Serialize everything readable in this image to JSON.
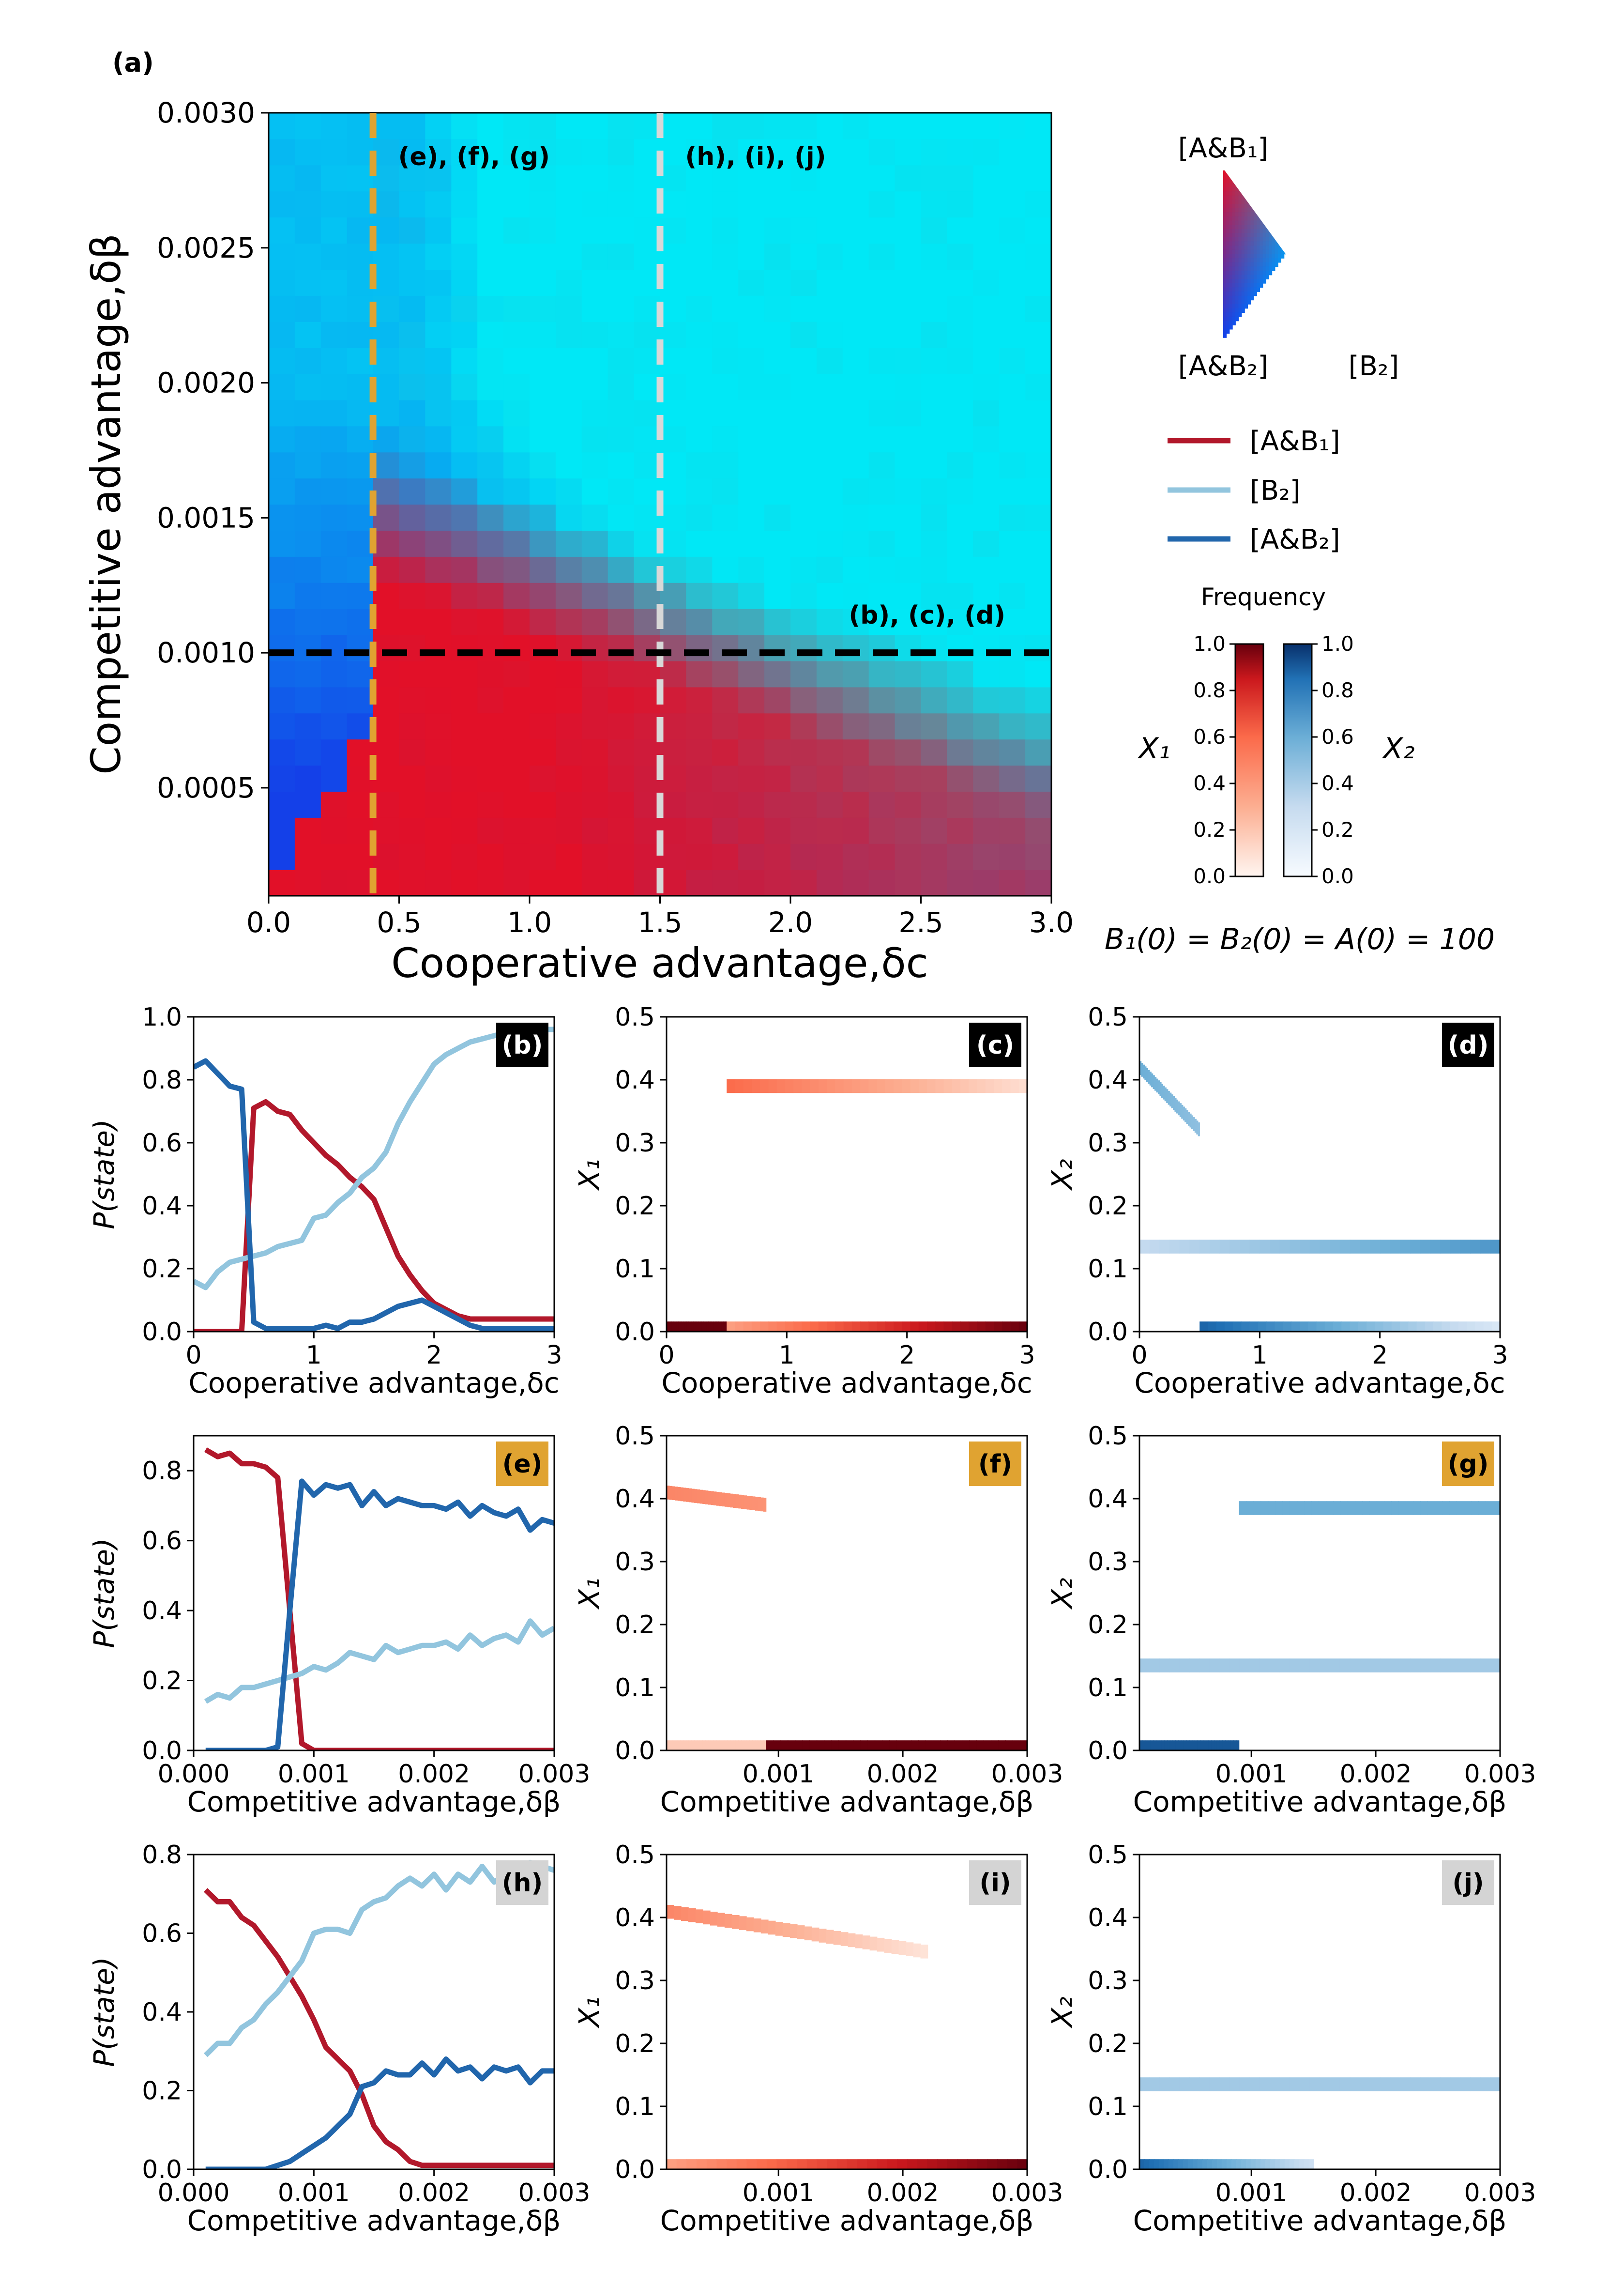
{
  "figure_label": "(a)",
  "annotation_initial": "B₁(0) = B₂(0) = A(0) = 100",
  "legend": {
    "triangle_top": "[A&B₁]",
    "triangle_bottom_left": "[A&B₂]",
    "triangle_bottom_right": "[B₂]",
    "lines": [
      {
        "label": "[A&B₁]",
        "color": "#b2182b"
      },
      {
        "label": "[B₂]",
        "color": "#92c5de"
      },
      {
        "label": "[A&B₂]",
        "color": "#2166ac"
      }
    ],
    "frequency_title": "Frequency",
    "x1_label": "X₁",
    "x2_label": "X₂",
    "ticks": [
      "1.0",
      "0.8",
      "0.6",
      "0.4",
      "0.2",
      "0.0"
    ]
  },
  "chart_data": [
    {
      "id": "a",
      "type": "heatmap",
      "title": "",
      "xlabel": "Cooperative advantage,δc",
      "ylabel": "Competitive advantage,δβ",
      "xlim": [
        0,
        3.0
      ],
      "ylim": [
        0.0001,
        0.003
      ],
      "xticks": [
        "0.0",
        "0.5",
        "1.0",
        "1.5",
        "2.0",
        "2.5",
        "3.0"
      ],
      "yticks": [
        "0.0005",
        "0.0010",
        "0.0015",
        "0.0020",
        "0.0025",
        "0.0030"
      ],
      "grid": {
        "nx": 30,
        "ny": 30,
        "value": "mixture of [A&B₁] (red), [A&B₂] (blue), [B₂] (cyan)"
      },
      "vlines": [
        {
          "x": 0.4,
          "color": "#e0a331",
          "label": "(e), (f), (g)"
        },
        {
          "x": 1.5,
          "color": "#d8d8d8",
          "label": "(h), (i), (j)"
        }
      ],
      "hlines": [
        {
          "y": 0.001,
          "color": "#000000",
          "label": "(b), (c), (d)"
        }
      ]
    },
    {
      "id": "b",
      "type": "line",
      "tag": "(b)",
      "tag_style": "black",
      "xlabel": "Cooperative advantage,δc",
      "ylabel": "P(state)",
      "xlim": [
        0,
        3
      ],
      "ylim": [
        0,
        1.0
      ],
      "xticks": [
        "0",
        "1",
        "2",
        "3"
      ],
      "yticks": [
        "0.0",
        "0.2",
        "0.4",
        "0.6",
        "0.8",
        "1.0"
      ],
      "x": [
        0,
        0.1,
        0.2,
        0.3,
        0.4,
        0.5,
        0.6,
        0.7,
        0.8,
        0.9,
        1.0,
        1.1,
        1.2,
        1.3,
        1.4,
        1.5,
        1.6,
        1.7,
        1.8,
        1.9,
        2.0,
        2.1,
        2.2,
        2.3,
        2.4,
        2.5,
        2.6,
        2.7,
        2.8,
        2.9,
        3.0
      ],
      "series": [
        {
          "name": "[A&B₁]",
          "color": "#b2182b",
          "values": [
            0,
            0,
            0,
            0,
            0,
            0.71,
            0.73,
            0.7,
            0.69,
            0.64,
            0.6,
            0.56,
            0.53,
            0.49,
            0.46,
            0.42,
            0.33,
            0.24,
            0.18,
            0.13,
            0.09,
            0.07,
            0.05,
            0.04,
            0.04,
            0.04,
            0.04,
            0.04,
            0.04,
            0.04,
            0.04
          ]
        },
        {
          "name": "[B₂]",
          "color": "#92c5de",
          "values": [
            0.16,
            0.14,
            0.19,
            0.22,
            0.23,
            0.24,
            0.25,
            0.27,
            0.28,
            0.29,
            0.36,
            0.37,
            0.41,
            0.44,
            0.49,
            0.52,
            0.57,
            0.66,
            0.73,
            0.79,
            0.85,
            0.88,
            0.9,
            0.92,
            0.93,
            0.94,
            0.95,
            0.96,
            0.96,
            0.96,
            0.96
          ]
        },
        {
          "name": "[A&B₂]",
          "color": "#2166ac",
          "values": [
            0.84,
            0.86,
            0.82,
            0.78,
            0.77,
            0.03,
            0.01,
            0.01,
            0.01,
            0.01,
            0.01,
            0.02,
            0.01,
            0.03,
            0.03,
            0.04,
            0.06,
            0.08,
            0.09,
            0.1,
            0.08,
            0.06,
            0.04,
            0.02,
            0.01,
            0.01,
            0.01,
            0.01,
            0.01,
            0.01,
            0.01
          ]
        }
      ]
    },
    {
      "id": "c",
      "type": "heatmap",
      "tag": "(c)",
      "tag_style": "black",
      "xlabel": "Cooperative advantage,δc",
      "ylabel": "X₁",
      "xlim": [
        0,
        3
      ],
      "ylim": [
        0,
        0.5
      ],
      "xticks": [
        "0",
        "1",
        "2",
        "3"
      ],
      "yticks": [
        "0.0",
        "0.1",
        "0.2",
        "0.3",
        "0.4",
        "0.5"
      ],
      "bands": [
        {
          "y": 0.005,
          "x0": 0.0,
          "x1": 0.5,
          "intensity": 1.0
        },
        {
          "y": 0.005,
          "x0": 0.5,
          "x1": 3.0,
          "intensity_from": 0.3,
          "intensity_to": 1.0
        },
        {
          "y": 0.39,
          "x0": 0.5,
          "x1": 3.0,
          "intensity_from": 0.5,
          "intensity_to": 0.08
        }
      ]
    },
    {
      "id": "d",
      "type": "heatmap",
      "tag": "(d)",
      "tag_style": "black",
      "xlabel": "Cooperative advantage,δc",
      "ylabel": "X₂",
      "xlim": [
        0,
        3
      ],
      "ylim": [
        0,
        0.5
      ],
      "xticks": [
        "0",
        "1",
        "2",
        "3"
      ],
      "yticks": [
        "0.0",
        "0.1",
        "0.2",
        "0.3",
        "0.4",
        "0.5"
      ],
      "bands": [
        {
          "y": 0.005,
          "x0": 0.5,
          "x1": 3.0,
          "intensity_from": 0.8,
          "intensity_to": 0.15
        },
        {
          "y": 0.135,
          "x0": 0.0,
          "x1": 3.0,
          "intensity_from": 0.25,
          "intensity_to": 0.6
        },
        {
          "y": 0.42,
          "x0": 0.0,
          "x1": 0.5,
          "intensity_from": 0.5,
          "intensity_to": 0.4,
          "slope": -0.1
        }
      ]
    },
    {
      "id": "e",
      "type": "line",
      "tag": "(e)",
      "tag_style": "gold",
      "xlabel": "Competitive advantage,δβ",
      "ylabel": "P(state)",
      "xlim": [
        0,
        0.003
      ],
      "ylim": [
        0,
        0.9
      ],
      "xticks": [
        "0.000",
        "0.001",
        "0.002",
        "0.003"
      ],
      "yticks": [
        "0.0",
        "0.2",
        "0.4",
        "0.6",
        "0.8"
      ],
      "x": [
        0.0001,
        0.0002,
        0.0003,
        0.0004,
        0.0005,
        0.0006,
        0.0007,
        0.0008,
        0.0009,
        0.001,
        0.0011,
        0.0012,
        0.0013,
        0.0014,
        0.0015,
        0.0016,
        0.0017,
        0.0018,
        0.0019,
        0.002,
        0.0021,
        0.0022,
        0.0023,
        0.0024,
        0.0025,
        0.0026,
        0.0027,
        0.0028,
        0.0029,
        0.003
      ],
      "series": [
        {
          "name": "[A&B₁]",
          "color": "#b2182b",
          "values": [
            0.86,
            0.84,
            0.85,
            0.82,
            0.82,
            0.81,
            0.78,
            0.4,
            0.02,
            0,
            0,
            0,
            0,
            0,
            0,
            0,
            0,
            0,
            0,
            0,
            0,
            0,
            0,
            0,
            0,
            0,
            0,
            0,
            0,
            0
          ]
        },
        {
          "name": "[B₂]",
          "color": "#92c5de",
          "values": [
            0.14,
            0.16,
            0.15,
            0.18,
            0.18,
            0.19,
            0.2,
            0.21,
            0.22,
            0.24,
            0.23,
            0.25,
            0.28,
            0.27,
            0.26,
            0.3,
            0.28,
            0.29,
            0.3,
            0.3,
            0.31,
            0.29,
            0.33,
            0.3,
            0.32,
            0.33,
            0.31,
            0.37,
            0.33,
            0.35
          ]
        },
        {
          "name": "[A&B₂]",
          "color": "#2166ac",
          "values": [
            0,
            0,
            0,
            0,
            0,
            0,
            0.01,
            0.4,
            0.77,
            0.73,
            0.76,
            0.75,
            0.76,
            0.7,
            0.74,
            0.7,
            0.72,
            0.71,
            0.7,
            0.7,
            0.69,
            0.71,
            0.67,
            0.7,
            0.68,
            0.67,
            0.69,
            0.63,
            0.66,
            0.65
          ]
        }
      ]
    },
    {
      "id": "f",
      "type": "heatmap",
      "tag": "(f)",
      "tag_style": "gold",
      "xlabel": "Competitive advantage,δβ",
      "ylabel": "X₁",
      "xlim": [
        0.0001,
        0.003
      ],
      "ylim": [
        0,
        0.5
      ],
      "xticks": [
        "0.001",
        "0.002",
        "0.003"
      ],
      "yticks": [
        "0.0",
        "0.1",
        "0.2",
        "0.3",
        "0.4",
        "0.5"
      ],
      "bands": [
        {
          "y": 0.005,
          "x0": 0.0001,
          "x1": 0.0009,
          "intensity": 0.15
        },
        {
          "y": 0.005,
          "x0": 0.0009,
          "x1": 0.003,
          "intensity": 1.0
        },
        {
          "y": 0.41,
          "x0": 0.0001,
          "x1": 0.0009,
          "intensity_from": 0.4,
          "intensity_to": 0.35,
          "slope": -0.02
        }
      ]
    },
    {
      "id": "g",
      "type": "heatmap",
      "tag": "(g)",
      "tag_style": "gold",
      "xlabel": "Competitive advantage,δβ",
      "ylabel": "X₂",
      "xlim": [
        0.0001,
        0.003
      ],
      "ylim": [
        0,
        0.5
      ],
      "xticks": [
        "0.001",
        "0.002",
        "0.003"
      ],
      "yticks": [
        "0.0",
        "0.1",
        "0.2",
        "0.3",
        "0.4",
        "0.5"
      ],
      "bands": [
        {
          "y": 0.005,
          "x0": 0.0001,
          "x1": 0.0009,
          "intensity": 0.85
        },
        {
          "y": 0.135,
          "x0": 0.0001,
          "x1": 0.003,
          "intensity": 0.35
        },
        {
          "y": 0.385,
          "x0": 0.0009,
          "x1": 0.003,
          "intensity": 0.5
        }
      ]
    },
    {
      "id": "h",
      "type": "line",
      "tag": "(h)",
      "tag_style": "grey",
      "xlabel": "Competitive advantage,δβ",
      "ylabel": "P(state)",
      "xlim": [
        0,
        0.003
      ],
      "ylim": [
        0,
        0.8
      ],
      "xticks": [
        "0.000",
        "0.001",
        "0.002",
        "0.003"
      ],
      "yticks": [
        "0.0",
        "0.2",
        "0.4",
        "0.6",
        "0.8"
      ],
      "x": [
        0.0001,
        0.0002,
        0.0003,
        0.0004,
        0.0005,
        0.0006,
        0.0007,
        0.0008,
        0.0009,
        0.001,
        0.0011,
        0.0012,
        0.0013,
        0.0014,
        0.0015,
        0.0016,
        0.0017,
        0.0018,
        0.0019,
        0.002,
        0.0021,
        0.0022,
        0.0023,
        0.0024,
        0.0025,
        0.0026,
        0.0027,
        0.0028,
        0.0029,
        0.003
      ],
      "series": [
        {
          "name": "[A&B₁]",
          "color": "#b2182b",
          "values": [
            0.71,
            0.68,
            0.68,
            0.64,
            0.62,
            0.58,
            0.54,
            0.49,
            0.44,
            0.38,
            0.31,
            0.28,
            0.25,
            0.19,
            0.11,
            0.07,
            0.05,
            0.02,
            0.01,
            0.01,
            0.01,
            0.01,
            0.01,
            0.01,
            0.01,
            0.01,
            0.01,
            0.01,
            0.01,
            0.01
          ]
        },
        {
          "name": "[B₂]",
          "color": "#92c5de",
          "values": [
            0.29,
            0.32,
            0.32,
            0.36,
            0.38,
            0.42,
            0.45,
            0.49,
            0.53,
            0.6,
            0.61,
            0.61,
            0.6,
            0.66,
            0.68,
            0.69,
            0.72,
            0.74,
            0.72,
            0.75,
            0.71,
            0.75,
            0.73,
            0.77,
            0.73,
            0.75,
            0.74,
            0.78,
            0.77,
            0.76
          ]
        },
        {
          "name": "[A&B₂]",
          "color": "#2166ac",
          "values": [
            0,
            0,
            0,
            0,
            0,
            0,
            0.01,
            0.02,
            0.04,
            0.06,
            0.08,
            0.11,
            0.14,
            0.21,
            0.22,
            0.25,
            0.24,
            0.24,
            0.27,
            0.24,
            0.28,
            0.25,
            0.26,
            0.23,
            0.26,
            0.25,
            0.26,
            0.22,
            0.25,
            0.25
          ]
        }
      ]
    },
    {
      "id": "i",
      "type": "heatmap",
      "tag": "(i)",
      "tag_style": "grey",
      "xlabel": "Competitive advantage,δβ",
      "ylabel": "X₁",
      "xlim": [
        0.0001,
        0.003
      ],
      "ylim": [
        0,
        0.5
      ],
      "xticks": [
        "0.001",
        "0.002",
        "0.003"
      ],
      "yticks": [
        "0.0",
        "0.1",
        "0.2",
        "0.3",
        "0.4",
        "0.5"
      ],
      "bands": [
        {
          "y": 0.005,
          "x0": 0.0001,
          "x1": 0.003,
          "intensity_from": 0.3,
          "intensity_to": 1.0
        },
        {
          "y": 0.41,
          "x0": 0.0001,
          "x1": 0.0022,
          "intensity_from": 0.4,
          "intensity_to": 0.06,
          "slope": -0.065
        }
      ]
    },
    {
      "id": "j",
      "type": "heatmap",
      "tag": "(j)",
      "tag_style": "grey",
      "xlabel": "Competitive advantage,δβ",
      "ylabel": "X₂",
      "xlim": [
        0.0001,
        0.003
      ],
      "ylim": [
        0,
        0.5
      ],
      "xticks": [
        "0.001",
        "0.002",
        "0.003"
      ],
      "yticks": [
        "0.0",
        "0.1",
        "0.2",
        "0.3",
        "0.4",
        "0.5"
      ],
      "bands": [
        {
          "y": 0.005,
          "x0": 0.0001,
          "x1": 0.0015,
          "intensity_from": 0.8,
          "intensity_to": 0.2
        },
        {
          "y": 0.135,
          "x0": 0.0001,
          "x1": 0.003,
          "intensity": 0.35
        }
      ]
    }
  ]
}
